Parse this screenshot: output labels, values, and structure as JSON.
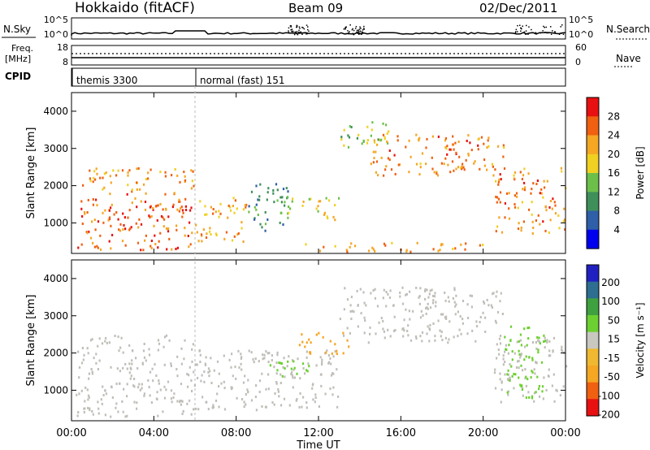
{
  "header": {
    "station": "Hokkaido (fitACF)",
    "beam": "Beam 09",
    "date": "02/Dec/2011"
  },
  "strips": {
    "nsky_label": "N.Sky",
    "nsearch_label": "N.Search",
    "freq_label": "Freq.",
    "freq_unit": "[MHz]",
    "nave_label": "Nave",
    "cpid_label": "CPID",
    "nsky_ticks": [
      "10^5",
      "10^0"
    ],
    "freq_ticks": [
      "18",
      "8"
    ],
    "nave_ticks": [
      "60",
      "0"
    ],
    "cpid_segments": [
      {
        "start_h": 0,
        "label": "themis 3300"
      },
      {
        "start_h": 6,
        "label": "normal (fast) 151"
      }
    ]
  },
  "x_axis": {
    "label": "Time UT",
    "ticks": [
      "00:00",
      "04:00",
      "08:00",
      "12:00",
      "16:00",
      "20:00",
      "00:00"
    ],
    "range_h": [
      0,
      24
    ]
  },
  "colors": {
    "power_scale": [
      "#0000ee",
      "#2e5fa8",
      "#3f8f5a",
      "#6cc04a",
      "#f0d020",
      "#f5a623",
      "#f06010",
      "#e81010"
    ],
    "velocity_scale": [
      "#e81010",
      "#f06010",
      "#f5a623",
      "#f0b830",
      "#c8c8c0",
      "#6cd030",
      "#3fa040",
      "#2e6e90",
      "#2020c0"
    ],
    "ground_scatter": "#c0beb8"
  },
  "chart_data": [
    {
      "type": "heatmap",
      "panel": "power",
      "ylabel": "Slant Range [km]",
      "ylim": [
        180,
        4500
      ],
      "y_ticks": [
        1000,
        2000,
        3000,
        4000
      ],
      "colorbar_label": "Power [dB]",
      "colorbar_ticks": [
        "28",
        "24",
        "20",
        "16",
        "12",
        "8",
        "4"
      ],
      "regions": [
        {
          "t0": 0.2,
          "t1": 6.0,
          "r0": 300,
          "r1": 1900,
          "level": 28
        },
        {
          "t0": 0.3,
          "t1": 6.0,
          "r0": 1900,
          "r1": 2500,
          "level": 24
        },
        {
          "t0": 6.0,
          "t1": 8.5,
          "r0": 500,
          "r1": 1700,
          "level": 24
        },
        {
          "t0": 8.5,
          "t1": 10.5,
          "r0": 800,
          "r1": 2100,
          "level": 12
        },
        {
          "t0": 10.3,
          "t1": 13.0,
          "r0": 1100,
          "r1": 1700,
          "level": 20
        },
        {
          "t0": 13.0,
          "t1": 15.5,
          "r0": 3000,
          "r1": 3900,
          "level": 16
        },
        {
          "t0": 14.5,
          "t1": 21.0,
          "r0": 2300,
          "r1": 3400,
          "level": 26
        },
        {
          "t0": 20.5,
          "t1": 24.0,
          "r0": 700,
          "r1": 2500,
          "level": 26
        },
        {
          "t0": 11.0,
          "t1": 20.0,
          "r0": 250,
          "r1": 500,
          "level": 24
        }
      ]
    },
    {
      "type": "heatmap",
      "panel": "velocity",
      "ylabel": "Slant Range [km]",
      "ylim": [
        180,
        4500
      ],
      "y_ticks": [
        1000,
        2000,
        3000,
        4000
      ],
      "colorbar_label": "Velocity [m s⁻¹]",
      "colorbar_ticks": [
        "200",
        "100",
        "50",
        "15",
        "-15",
        "-50",
        "-100",
        "-200"
      ],
      "regions": [
        {
          "t0": 0.2,
          "t1": 6.0,
          "r0": 300,
          "r1": 2500,
          "level": 0
        },
        {
          "t0": 6.0,
          "t1": 13.0,
          "r0": 500,
          "r1": 2100,
          "level": 0
        },
        {
          "t0": 13.0,
          "t1": 21.0,
          "r0": 2300,
          "r1": 3800,
          "level": 0
        },
        {
          "t0": 20.5,
          "t1": 24.0,
          "r0": 700,
          "r1": 2500,
          "level": 0
        },
        {
          "t0": 9.5,
          "t1": 11.5,
          "r0": 1400,
          "r1": 1900,
          "level": 30
        },
        {
          "t0": 11.0,
          "t1": 13.5,
          "r0": 2000,
          "r1": 2600,
          "level": -40
        },
        {
          "t0": 21.0,
          "t1": 23.0,
          "r0": 800,
          "r1": 2800,
          "level": 40
        }
      ]
    }
  ]
}
